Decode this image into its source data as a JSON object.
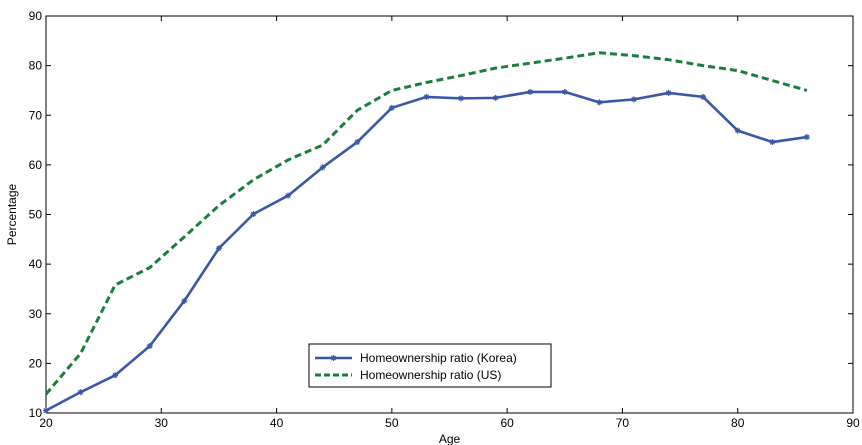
{
  "chart_data": {
    "type": "line",
    "title": "",
    "xlabel": "Age",
    "ylabel": "Percentage",
    "xlim": [
      20,
      90
    ],
    "ylim": [
      10,
      90
    ],
    "xticks": [
      20,
      30,
      40,
      50,
      60,
      70,
      80,
      90
    ],
    "yticks": [
      10,
      20,
      30,
      40,
      50,
      60,
      70,
      80,
      90
    ],
    "grid": false,
    "legend_position": "bottom-center",
    "series": [
      {
        "name": "Homeownership ratio (Korea)",
        "color": "#3a57a7",
        "style": "solid-with-star-markers",
        "x": [
          20,
          23,
          26,
          29,
          32,
          35,
          38,
          41,
          44,
          47,
          50,
          53,
          56,
          59,
          62,
          65,
          68,
          71,
          74,
          77,
          80,
          83,
          86
        ],
        "y": [
          10.5,
          14.2,
          17.6,
          23.5,
          32.6,
          43.2,
          50.1,
          53.8,
          59.5,
          64.6,
          71.5,
          73.7,
          73.4,
          73.5,
          74.7,
          74.7,
          72.6,
          73.2,
          74.5,
          73.7,
          66.9,
          64.6,
          65.6
        ]
      },
      {
        "name": "Homeownership ratio (US)",
        "color": "#1a7f3c",
        "style": "dashed",
        "x": [
          20,
          23,
          26,
          29,
          32,
          35,
          38,
          41,
          44,
          47,
          50,
          53,
          56,
          59,
          62,
          65,
          68,
          71,
          74,
          77,
          80,
          83,
          86
        ],
        "y": [
          13.8,
          22.0,
          35.8,
          39.3,
          45.5,
          51.8,
          57.0,
          61.0,
          64.0,
          71.0,
          75.0,
          76.6,
          78.0,
          79.5,
          80.5,
          81.5,
          82.6,
          82.0,
          81.2,
          80.0,
          79.0,
          77.0,
          75.0
        ]
      }
    ]
  }
}
